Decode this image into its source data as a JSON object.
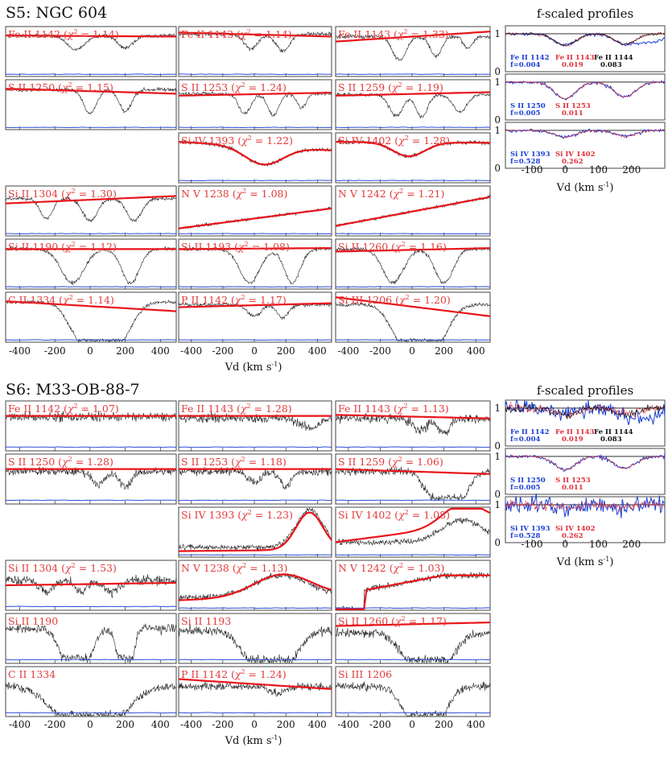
{
  "sections": [
    {
      "id": "s5",
      "title": "S5: NGC 604",
      "xlabel": "Vd (km s",
      "xlabel_sup": "-1",
      "xlabel_tail": ")",
      "xlim": [
        -480,
        490
      ],
      "xticks": [
        -400,
        -200,
        0,
        200,
        400
      ],
      "xtick_labels": [
        "-400",
        "-200",
        "0",
        "200",
        "400"
      ],
      "panels": [
        {
          "label": "Fe II 1142",
          "chi": "1.14",
          "col": 0,
          "row": 0,
          "fit": [
            0.82,
            0.8
          ],
          "dips": [
            [
              -80,
              70,
              0.35
            ],
            [
              200,
              60,
              0.3
            ]
          ],
          "cont": 0.82,
          "noise": 0.035
        },
        {
          "label": "Fe II 1143",
          "chi": "1.14",
          "col": 1,
          "row": 0,
          "fit": [
            0.88,
            0.8
          ],
          "dips": [
            [
              -20,
              60,
              0.35
            ],
            [
              180,
              60,
              0.4
            ]
          ],
          "cont": 0.85,
          "noise": 0.04
        },
        {
          "label": "Fe II 1143",
          "chi": "1.33",
          "col": 2,
          "row": 0,
          "fit": [
            0.7,
            0.9
          ],
          "dips": [
            [
              -80,
              60,
              0.6
            ],
            [
              150,
              50,
              0.5
            ],
            [
              350,
              40,
              0.3
            ]
          ],
          "cont": 0.8,
          "noise": 0.04
        },
        {
          "label": "S II 1250",
          "chi": "1.15",
          "col": 0,
          "row": 1,
          "fit": [
            0.82,
            0.72
          ],
          "dips": [
            [
              0,
              50,
              0.6
            ],
            [
              200,
              50,
              0.55
            ]
          ],
          "cont": 0.8,
          "noise": 0.035
        },
        {
          "label": "S II 1253",
          "chi": "1.24",
          "col": 1,
          "row": 1,
          "fit": [
            0.68,
            0.74
          ],
          "dips": [
            [
              -60,
              55,
              0.55
            ],
            [
              120,
              50,
              0.6
            ],
            [
              300,
              40,
              0.4
            ]
          ],
          "cont": 0.72,
          "noise": 0.035
        },
        {
          "label": "S II 1259",
          "chi": "1.19",
          "col": 2,
          "row": 1,
          "fit": [
            0.68,
            0.75
          ],
          "dips": [
            [
              -100,
              60,
              0.6
            ],
            [
              60,
              50,
              0.65
            ],
            [
              300,
              60,
              0.5
            ]
          ],
          "cont": 0.7,
          "noise": 0.035
        },
        {
          "label": "Si IV 1393",
          "chi": "1.22",
          "col": 1,
          "row": 2,
          "fit": [
            0.82,
            0.65
          ],
          "dips": [
            [
              60,
              170,
              0.45
            ]
          ],
          "cont": 0.8,
          "noise": 0.035,
          "curvefit": true
        },
        {
          "label": "Si IV 1402",
          "chi": "1.28",
          "col": 2,
          "row": 2,
          "fit": [
            0.82,
            0.8
          ],
          "dips": [
            [
              -20,
              140,
              0.35
            ]
          ],
          "cont": 0.8,
          "noise": 0.035,
          "curvefit": true
        },
        {
          "label": "Si II 1304",
          "chi": "1.30",
          "col": 0,
          "row": 3,
          "fit": [
            0.65,
            0.8
          ],
          "dips": [
            [
              -250,
              50,
              0.55
            ],
            [
              0,
              60,
              0.6
            ],
            [
              250,
              60,
              0.6
            ]
          ],
          "cont": 0.75,
          "noise": 0.035
        },
        {
          "label": "N V 1238",
          "chi": "1.08",
          "col": 1,
          "row": 3,
          "fit": [
            0.15,
            0.55
          ],
          "dips": [],
          "cont": 0.35,
          "noise": 0.03,
          "slope": true
        },
        {
          "label": "N V 1242",
          "chi": "1.21",
          "col": 2,
          "row": 3,
          "fit": [
            0.2,
            0.78
          ],
          "dips": [],
          "cont": 0.5,
          "noise": 0.03,
          "slope": true
        },
        {
          "label": "Si II 1190",
          "chi": "1.12",
          "col": 0,
          "row": 4,
          "fit": [
            0.8,
            0.8
          ],
          "dips": [
            [
              -100,
              90,
              0.85
            ],
            [
              230,
              70,
              0.85
            ]
          ],
          "cont": 0.8,
          "noise": 0.035
        },
        {
          "label": "Si II 1193",
          "chi": "1.08",
          "col": 1,
          "row": 4,
          "fit": [
            0.8,
            0.82
          ],
          "dips": [
            [
              -30,
              90,
              0.85
            ],
            [
              240,
              70,
              0.85
            ]
          ],
          "cont": 0.8,
          "noise": 0.035
        },
        {
          "label": "Si II 1260",
          "chi": "1.16",
          "col": 2,
          "row": 4,
          "fit": [
            0.75,
            0.82
          ],
          "dips": [
            [
              -120,
              90,
              0.85
            ],
            [
              200,
              80,
              0.85
            ]
          ],
          "cont": 0.8,
          "noise": 0.035
        },
        {
          "label": "C II 1334",
          "chi": "1.14",
          "col": 0,
          "row": 5,
          "fit": [
            0.82,
            0.62
          ],
          "dips": [
            [
              60,
              190,
              0.95
            ]
          ],
          "cont": 0.8,
          "noise": 0.035,
          "sat": true
        },
        {
          "label": "P II 1142",
          "chi": "1.17",
          "col": 1,
          "row": 5,
          "fit": [
            0.7,
            0.78
          ],
          "dips": [
            [
              0,
              60,
              0.3
            ],
            [
              180,
              50,
              0.35
            ]
          ],
          "cont": 0.75,
          "noise": 0.035
        },
        {
          "label": "Si III 1206",
          "chi": "1.20",
          "col": 2,
          "row": 5,
          "fit": [
            0.9,
            0.52
          ],
          "dips": [
            [
              50,
              200,
              0.95
            ]
          ],
          "cont": 0.75,
          "noise": 0.035,
          "sat": true
        }
      ],
      "fscaled": {
        "title": "f-scaled profiles",
        "xlabel": "Vd (km s",
        "xlabel_sup": "-1",
        "xlabel_tail": ")",
        "xticks": [
          -100,
          0,
          100,
          200
        ],
        "xtick_labels": [
          "-100",
          "0",
          "100",
          "200"
        ],
        "yticks": [
          "0",
          "1"
        ],
        "panels": [
          {
            "labels": [
              [
                "Fe II 1142",
                "f=0.004",
                "#1a3fd6"
              ],
              [
                "Fe II 1143",
                "0.019",
                "#e0303a"
              ],
              [
                "Fe II 1144",
                "0.083",
                "#111111"
              ]
            ],
            "depth": 0.35
          },
          {
            "labels": [
              [
                "S II 1250",
                "f=0.005",
                "#1a3fd6"
              ],
              [
                "S II 1253",
                "0.011",
                "#e0303a"
              ]
            ],
            "depth": 0.5
          },
          {
            "labels": [
              [
                "Si IV 1393",
                "f=0.528",
                "#1a3fd6"
              ],
              [
                "Si IV 1402",
                "0.262",
                "#e0303a"
              ]
            ],
            "depth": 0.2
          }
        ]
      }
    },
    {
      "id": "s6",
      "title": "S6: M33-OB-88-7",
      "xlabel": "Vd (km s",
      "xlabel_sup": "-1",
      "xlabel_tail": ")",
      "xlim": [
        -480,
        490
      ],
      "xticks": [
        -400,
        -200,
        0,
        200,
        400
      ],
      "xtick_labels": [
        "-400",
        "-200",
        "0",
        "200",
        "400"
      ],
      "panels": [
        {
          "label": "Fe II 1142",
          "chi": "1.07",
          "col": 0,
          "row": 0,
          "fit": [
            0.7,
            0.7
          ],
          "dips": [],
          "cont": 0.68,
          "noise": 0.09
        },
        {
          "label": "Fe II 1143",
          "chi": "1.28",
          "col": 1,
          "row": 0,
          "fit": [
            0.7,
            0.7
          ],
          "dips": [
            [
              350,
              80,
              0.3
            ]
          ],
          "cont": 0.65,
          "noise": 0.09
        },
        {
          "label": "Fe II 1143",
          "chi": "1.13",
          "col": 2,
          "row": 0,
          "fit": [
            0.72,
            0.65
          ],
          "dips": [
            [
              50,
              70,
              0.35
            ],
            [
              200,
              50,
              0.45
            ]
          ],
          "cont": 0.65,
          "noise": 0.09
        },
        {
          "label": "S II 1250",
          "chi": "1.28",
          "col": 0,
          "row": 1,
          "fit": [
            0.7,
            0.7
          ],
          "dips": [
            [
              50,
              50,
              0.4
            ],
            [
              200,
              50,
              0.45
            ]
          ],
          "cont": 0.65,
          "noise": 0.08
        },
        {
          "label": "S II 1253",
          "chi": "1.18",
          "col": 1,
          "row": 1,
          "fit": [
            0.7,
            0.7
          ],
          "dips": [
            [
              0,
              60,
              0.3
            ],
            [
              200,
              50,
              0.45
            ]
          ],
          "cont": 0.65,
          "noise": 0.08
        },
        {
          "label": "S II 1259",
          "chi": "1.06",
          "col": 2,
          "row": 1,
          "fit": [
            0.7,
            0.6
          ],
          "dips": [
            [
              220,
              150,
              0.8
            ]
          ],
          "cont": 0.65,
          "noise": 0.08,
          "sat": true
        },
        {
          "label": "Si IV 1393",
          "chi": "1.23",
          "col": 1,
          "row": 2,
          "fit": [
            0.12,
            0.15
          ],
          "dips": [],
          "cont": 0.2,
          "noise": 0.05,
          "emis": [
            [
              350,
              120,
              0.75
            ]
          ]
        },
        {
          "label": "Si IV 1402",
          "chi": "1.08",
          "col": 2,
          "row": 2,
          "fit": [
            0.3,
            0.7
          ],
          "dips": [],
          "cont": 0.3,
          "noise": 0.06,
          "emis": [
            [
              320,
              180,
              0.45
            ]
          ]
        },
        {
          "label": "Si II 1304",
          "chi": "1.53",
          "col": 0,
          "row": 3,
          "fit": [
            0.5,
            0.55
          ],
          "dips": [
            [
              -250,
              50,
              0.4
            ],
            [
              -50,
              50,
              0.4
            ],
            [
              120,
              60,
              0.4
            ]
          ],
          "cont": 0.6,
          "noise": 0.09
        },
        {
          "label": "N V 1238",
          "chi": "1.13",
          "col": 1,
          "row": 3,
          "fit": [
            0.2,
            0.3
          ],
          "dips": [],
          "cont": 0.25,
          "noise": 0.06,
          "emis": [
            [
              180,
              260,
              0.45
            ]
          ]
        },
        {
          "label": "N V 1242",
          "chi": "1.03",
          "col": 2,
          "row": 3,
          "fit": [
            0.4,
            0.7
          ],
          "dips": [],
          "cont": 0.5,
          "noise": 0.06,
          "step": true
        },
        {
          "label": "Si II 1190",
          "chi": "",
          "col": 0,
          "row": 4,
          "fit": null,
          "dips": [
            [
              -80,
              110,
              0.85
            ],
            [
              200,
              60,
              0.85
            ]
          ],
          "cont": 0.7,
          "noise": 0.09,
          "sat": true
        },
        {
          "label": "Si II 1193",
          "chi": "",
          "col": 1,
          "row": 4,
          "fit": null,
          "dips": [
            [
              100,
              200,
              0.9
            ]
          ],
          "cont": 0.65,
          "noise": 0.09,
          "sat": true
        },
        {
          "label": "Si II 1260",
          "chi": "1.17",
          "col": 2,
          "row": 4,
          "fit": [
            0.75,
            0.82
          ],
          "dips": [
            [
              100,
              190,
              0.9
            ]
          ],
          "cont": 0.6,
          "noise": 0.09,
          "sat": true
        },
        {
          "label": "C II 1334",
          "chi": "",
          "col": 0,
          "row": 5,
          "fit": null,
          "dips": [
            [
              0,
              260,
              0.95
            ]
          ],
          "cont": 0.6,
          "noise": 0.08,
          "sat": true
        },
        {
          "label": "P II 1142",
          "chi": "1.24",
          "col": 1,
          "row": 5,
          "fit": [
            0.75,
            0.55
          ],
          "dips": [
            [
              150,
              60,
              0.25
            ]
          ],
          "cont": 0.6,
          "noise": 0.08
        },
        {
          "label": "Si III 1206",
          "chi": "",
          "col": 2,
          "row": 5,
          "fit": null,
          "dips": [
            [
              80,
              170,
              0.95
            ]
          ],
          "cont": 0.6,
          "noise": 0.08,
          "sat": true
        }
      ],
      "fscaled": {
        "title": "f-scaled profiles",
        "xlabel": "Vd (km s",
        "xlabel_sup": "-1",
        "xlabel_tail": ")",
        "xticks": [
          -100,
          0,
          100,
          200
        ],
        "xtick_labels": [
          "-100",
          "0",
          "100",
          "200"
        ],
        "yticks": [
          "0",
          "1"
        ],
        "panels": [
          {
            "labels": [
              [
                "Fe II 1142",
                "f=0.004",
                "#1a3fd6"
              ],
              [
                "Fe II 1143",
                "0.019",
                "#e0303a"
              ],
              [
                "Fe II 1144",
                "0.083",
                "#111111"
              ]
            ],
            "depth": 0.2,
            "noisy": true
          },
          {
            "labels": [
              [
                "S II 1250",
                "f=0.005",
                "#1a3fd6"
              ],
              [
                "S II 1253",
                "0.011",
                "#e0303a"
              ]
            ],
            "depth": 0.4
          },
          {
            "labels": [
              [
                "Si IV 1393",
                "f=0.528",
                "#1a3fd6"
              ],
              [
                "Si IV 1402",
                "0.262",
                "#e0303a"
              ]
            ],
            "depth": 0.1,
            "noisy": true
          }
        ]
      }
    }
  ],
  "chart_data": [
    {
      "type": "line",
      "title": "S5: NGC 604",
      "xlabel": "Vd (km s-1)",
      "xlim": [
        -480,
        490
      ],
      "series": [
        "data (black)",
        "fit (red)",
        "error (blue)"
      ]
    },
    {
      "type": "line",
      "title": "S6: M33-OB-88-7",
      "xlabel": "Vd (km s-1)",
      "xlim": [
        -480,
        490
      ],
      "series": [
        "data (black)",
        "fit (red)",
        "error (blue)"
      ]
    }
  ],
  "colors": {
    "data": "#222222",
    "fit": "#e8141a",
    "err": "#2e4fd8",
    "label": "#e23b3b",
    "frame": "#444444"
  }
}
